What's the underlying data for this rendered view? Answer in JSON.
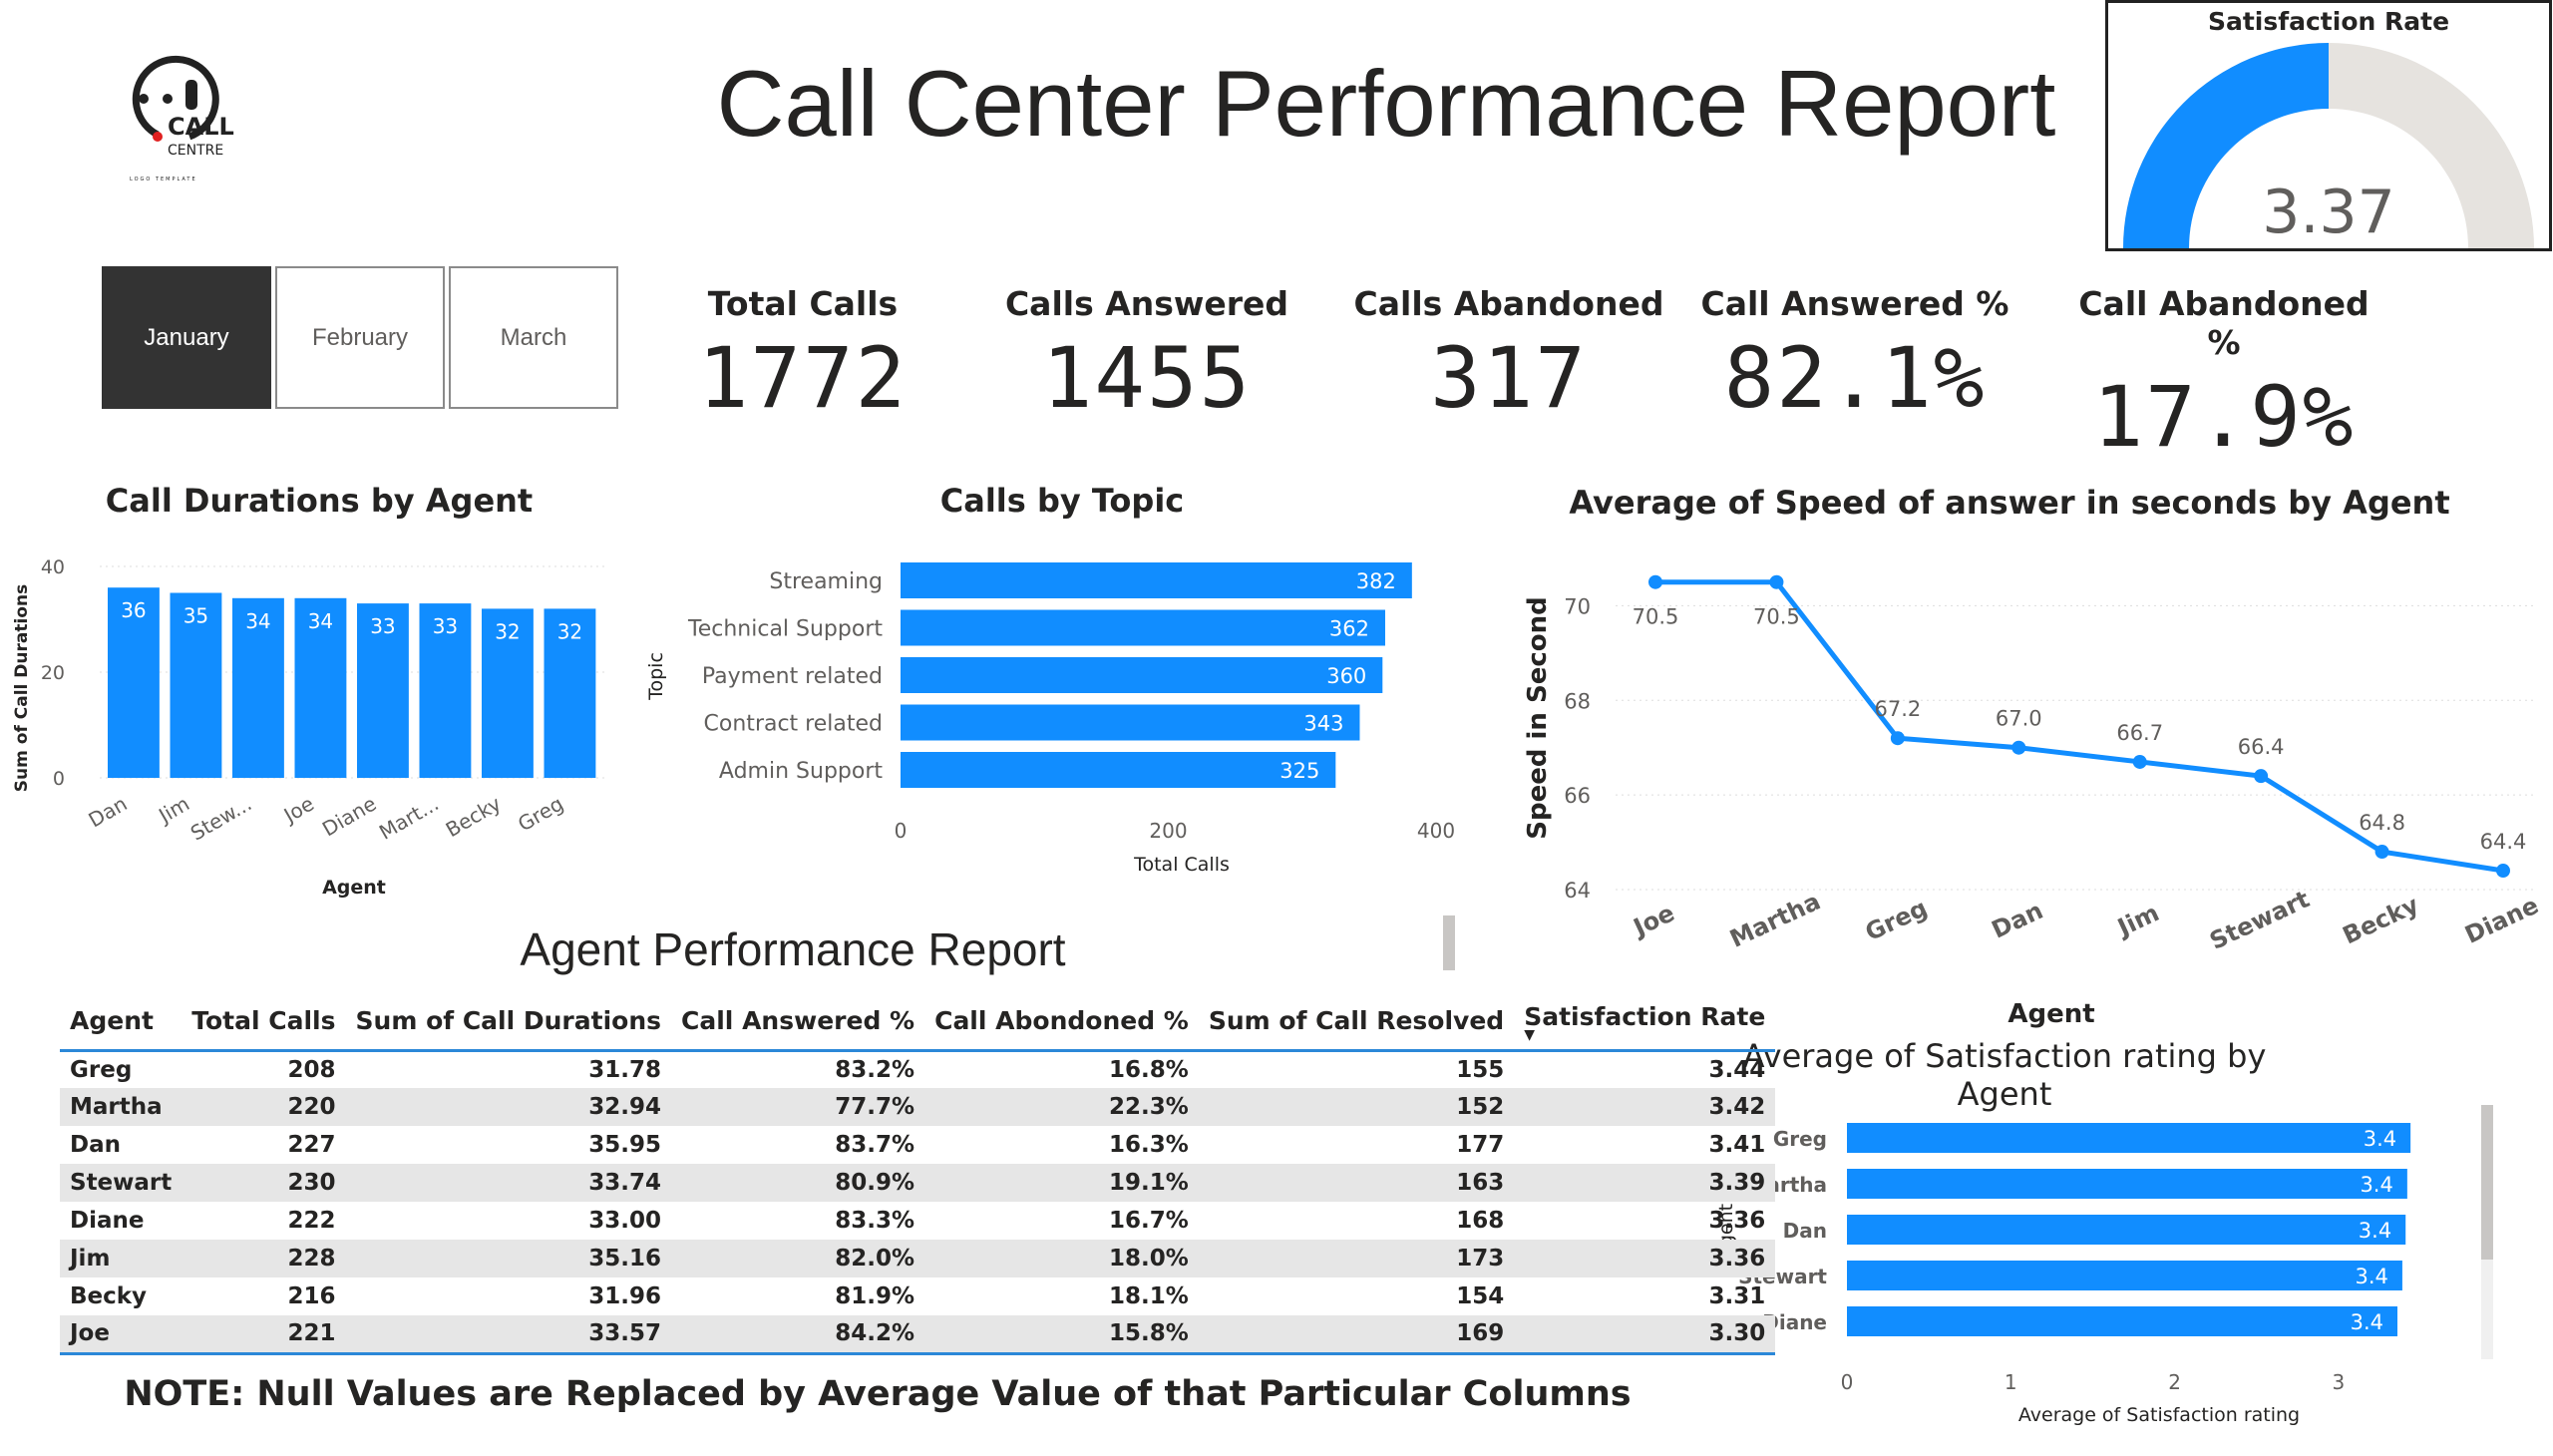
{
  "logo": {
    "line1": "CALL",
    "line2": "CENTRE",
    "tagline": "LOGO TEMPLATE"
  },
  "title": "Call Center Performance Report",
  "gauge": {
    "title": "Satisfaction Rate",
    "value": "3.37",
    "fraction": 0.5,
    "fill_color": "#118DFF",
    "track_color": "#E6E3DF"
  },
  "months": [
    {
      "label": "January",
      "selected": true
    },
    {
      "label": "February",
      "selected": false
    },
    {
      "label": "March",
      "selected": false
    }
  ],
  "kpis": [
    {
      "label": "Total Calls",
      "value": "1772"
    },
    {
      "label": "Calls Answered",
      "value": "1455"
    },
    {
      "label": "Calls Abandoned",
      "value": "317"
    },
    {
      "label": "Call Answered %",
      "value": "82.1%"
    },
    {
      "label": "Call Abandoned %",
      "value": "17.9%"
    }
  ],
  "colors": {
    "bar": "#118DFF",
    "text": "#252423",
    "accent_line": "#2B88D8"
  },
  "chart_data": [
    {
      "type": "bar",
      "title": "Call Durations by Agent",
      "xlabel": "Agent",
      "ylabel": "Sum of Call Durations",
      "categories": [
        "Dan",
        "Jim",
        "Stew...",
        "Joe",
        "Diane",
        "Mart...",
        "Becky",
        "Greg"
      ],
      "values": [
        36,
        35,
        34,
        34,
        33,
        33,
        32,
        32
      ],
      "ylim": [
        0,
        40
      ],
      "yticks": [
        "0",
        "20",
        "40"
      ],
      "grid": true
    },
    {
      "type": "bar",
      "orientation": "horizontal",
      "title": "Calls by Topic",
      "xlabel": "Total Calls",
      "ylabel": "Topic",
      "categories": [
        "Streaming",
        "Technical Support",
        "Payment related",
        "Contract related",
        "Admin Support"
      ],
      "values": [
        382,
        362,
        360,
        343,
        325
      ],
      "xlim": [
        0,
        400
      ],
      "xticks": [
        "0",
        "200",
        "400"
      ]
    },
    {
      "type": "line",
      "title": "Average of Speed of answer in seconds by Agent",
      "xlabel": "Agent",
      "ylabel": "Speed in Second",
      "categories": [
        "Joe",
        "Martha",
        "Greg",
        "Dan",
        "Jim",
        "Stewart",
        "Becky",
        "Diane"
      ],
      "values": [
        70.5,
        70.5,
        67.2,
        67.0,
        66.7,
        66.4,
        64.8,
        64.4
      ],
      "labels": [
        "70.5",
        "70.5",
        "67.2",
        "67.0",
        "66.7",
        "66.4",
        "64.8",
        "64.4"
      ],
      "ylim": [
        64,
        71
      ],
      "yticks": [
        "64",
        "66",
        "68",
        "70"
      ],
      "grid": true
    },
    {
      "type": "bar",
      "orientation": "horizontal",
      "title": "Average of Satisfaction rating by Agent",
      "xlabel": "Average of Satisfaction rating",
      "ylabel": "Agent",
      "categories": [
        "Greg",
        "Martha",
        "Dan",
        "Stewart",
        "Diane"
      ],
      "values": [
        3.44,
        3.42,
        3.41,
        3.39,
        3.36
      ],
      "labels": [
        "3.4",
        "3.4",
        "3.4",
        "3.4",
        "3.4"
      ],
      "xlim": [
        0,
        3.5
      ],
      "xticks": [
        "0",
        "1",
        "2",
        "3"
      ]
    }
  ],
  "agent_table": {
    "title": "Agent Performance Report",
    "columns": [
      "Agent",
      "Total Calls",
      "Sum of Call Durations",
      "Call Answered %",
      "Call Abondoned %",
      "Sum of Call Resolved",
      "Satisfaction Rate"
    ],
    "sorted_column": "Satisfaction Rate",
    "rows": [
      [
        "Greg",
        "208",
        "31.78",
        "83.2%",
        "16.8%",
        "155",
        "3.44"
      ],
      [
        "Martha",
        "220",
        "32.94",
        "77.7%",
        "22.3%",
        "152",
        "3.42"
      ],
      [
        "Dan",
        "227",
        "35.95",
        "83.7%",
        "16.3%",
        "177",
        "3.41"
      ],
      [
        "Stewart",
        "230",
        "33.74",
        "80.9%",
        "19.1%",
        "163",
        "3.39"
      ],
      [
        "Diane",
        "222",
        "33.00",
        "83.3%",
        "16.7%",
        "168",
        "3.36"
      ],
      [
        "Jim",
        "228",
        "35.16",
        "82.0%",
        "18.0%",
        "173",
        "3.36"
      ],
      [
        "Becky",
        "216",
        "31.96",
        "81.9%",
        "18.1%",
        "154",
        "3.31"
      ],
      [
        "Joe",
        "221",
        "33.57",
        "84.2%",
        "15.8%",
        "169",
        "3.30"
      ]
    ]
  },
  "note": "NOTE: Null Values are Replaced by Average Value of that Particular Columns"
}
